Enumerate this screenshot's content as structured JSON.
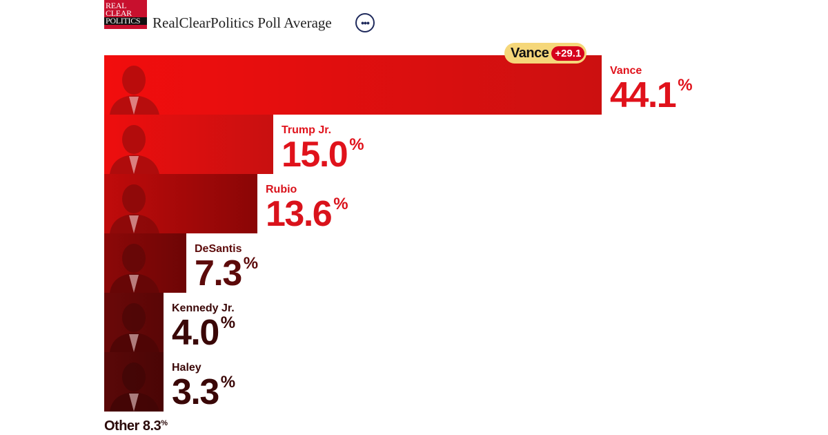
{
  "header": {
    "logo_lines": [
      "REAL",
      "CLEAR",
      "POLITICS"
    ],
    "title": "RealClearPolitics Poll Average"
  },
  "leader": {
    "name": "Vance",
    "margin": "+29.1"
  },
  "other": {
    "label": "Other",
    "value": "8.3",
    "unit": "%"
  },
  "colors": {
    "bar_gradient": [
      [
        "#f20d0d",
        "#cc1010"
      ],
      [
        "#ee0e0e",
        "#c81010"
      ],
      [
        "#c00b0b",
        "#8a0606"
      ],
      [
        "#8c0808",
        "#6e0505"
      ],
      [
        "#6a0808",
        "#5a0606"
      ],
      [
        "#5a0808",
        "#4a0505"
      ]
    ],
    "label": [
      "#e0121b",
      "#e0121b",
      "#d9121b",
      "#5c0a0a",
      "#3a0707",
      "#3a0707"
    ]
  },
  "chart_data": {
    "type": "bar",
    "orientation": "horizontal",
    "categories": [
      "Vance",
      "Trump Jr.",
      "Rubio",
      "DeSantis",
      "Kennedy Jr.",
      "Haley"
    ],
    "values": [
      44.1,
      15.0,
      13.6,
      7.3,
      4.0,
      3.3
    ],
    "value_labels": [
      "44.1",
      "15.0",
      "13.6",
      "7.3",
      "4.0",
      "3.3"
    ],
    "unit": "%",
    "title": "RealClearPolitics Poll Average",
    "xlim": [
      0,
      44.1
    ]
  }
}
